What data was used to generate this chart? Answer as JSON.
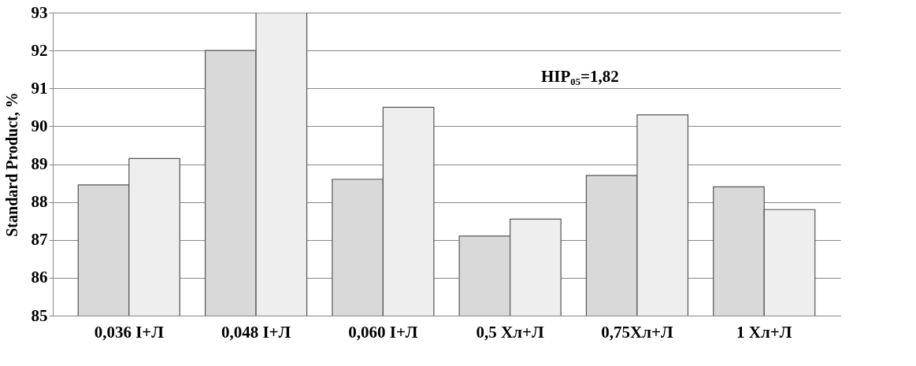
{
  "chart_data": {
    "type": "bar",
    "ylabel": "Standard  Product, %",
    "categories": [
      "0,036 І+Л",
      "0,048 І+Л",
      "0,060 І+Л",
      "0,5 Хл+Л",
      "0,75Хл+Л",
      "1 Хл+Л"
    ],
    "series": [
      {
        "color": "#d9d9d9",
        "values": [
          88.45,
          92.0,
          88.6,
          87.1,
          88.7,
          88.4
        ]
      },
      {
        "color": "#eeeeee",
        "values": [
          89.15,
          93.0,
          90.5,
          87.55,
          90.3,
          87.8
        ]
      }
    ],
    "ylim": [
      85,
      93
    ],
    "yticks": [
      85,
      86,
      87,
      88,
      89,
      90,
      91,
      92,
      93
    ],
    "grid": "y",
    "legend": false,
    "annotations": [
      "HIP₀₅=1,82"
    ]
  }
}
